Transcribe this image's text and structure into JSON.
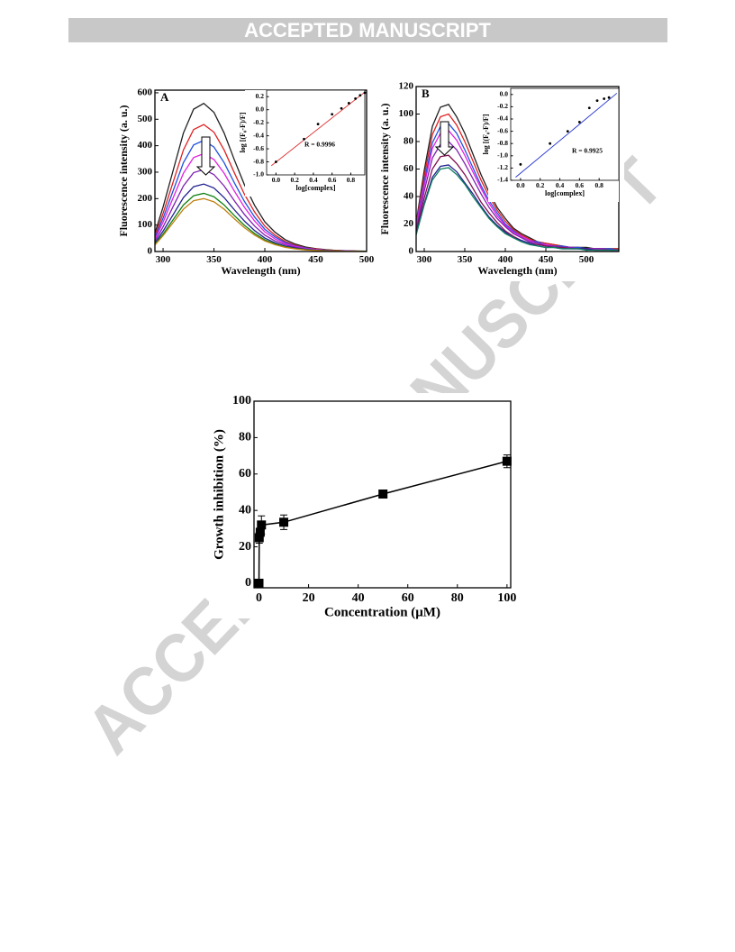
{
  "header": "ACCEPTED MANUSCRIPT",
  "watermark": "ACCEPTED MANUSCRIPT",
  "chart_data": [
    {
      "type": "line",
      "panel_label": "A",
      "xlabel": "Wavelength (nm)",
      "ylabel": "Fluorescence intensity (a. u.)",
      "xlim": [
        292,
        500
      ],
      "ylim": [
        0,
        610
      ],
      "xticks": [
        300,
        350,
        400,
        450,
        500
      ],
      "yticks": [
        0,
        100,
        200,
        300,
        400,
        500,
        600
      ],
      "x": [
        290,
        300,
        310,
        320,
        330,
        340,
        350,
        360,
        370,
        380,
        390,
        400,
        410,
        420,
        430,
        440,
        450,
        460,
        470,
        480,
        490,
        500
      ],
      "series": [
        {
          "color": "#202020",
          "values": [
            45,
            168,
            308,
            448,
            538,
            560,
            526,
            448,
            347,
            252,
            174,
            112,
            73,
            45,
            28,
            17,
            11,
            7,
            4,
            3,
            2,
            1
          ]
        },
        {
          "color": "#e02020",
          "values": [
            38,
            144,
            264,
            384,
            461,
            480,
            451,
            384,
            298,
            216,
            149,
            96,
            62,
            38,
            24,
            14,
            10,
            6,
            4,
            2,
            1,
            1
          ]
        },
        {
          "color": "#2050e0",
          "values": [
            34,
            126,
            231,
            336,
            403,
            420,
            395,
            336,
            260,
            189,
            130,
            84,
            55,
            34,
            21,
            13,
            8,
            5,
            3,
            2,
            1,
            1
          ]
        },
        {
          "color": "#e020e0",
          "values": [
            30,
            111,
            204,
            296,
            355,
            370,
            348,
            296,
            229,
            167,
            115,
            74,
            48,
            30,
            19,
            11,
            7,
            4,
            3,
            2,
            1,
            1
          ]
        },
        {
          "color": "#8020b0",
          "values": [
            25,
            93,
            171,
            248,
            298,
            310,
            291,
            248,
            192,
            140,
            96,
            62,
            40,
            25,
            16,
            9,
            6,
            4,
            2,
            2,
            1,
            1
          ]
        },
        {
          "color": "#202090",
          "values": [
            20,
            77,
            140,
            204,
            245,
            255,
            240,
            204,
            158,
            115,
            79,
            51,
            33,
            20,
            13,
            8,
            5,
            3,
            2,
            1,
            1,
            1
          ]
        },
        {
          "color": "#108010",
          "values": [
            18,
            66,
            121,
            176,
            211,
            220,
            207,
            176,
            136,
            99,
            68,
            44,
            29,
            18,
            11,
            7,
            4,
            3,
            2,
            1,
            1,
            0
          ]
        },
        {
          "color": "#c08010",
          "values": [
            16,
            60,
            110,
            160,
            192,
            200,
            188,
            160,
            124,
            90,
            62,
            40,
            26,
            16,
            10,
            6,
            4,
            2,
            2,
            1,
            1,
            0
          ]
        }
      ]
    },
    {
      "type": "scatter",
      "annotation": "R = 0.9996",
      "xlabel": "log[complex]",
      "ylabel": "log [(F₀-F)/F]",
      "xlim": [
        -0.1,
        0.95
      ],
      "ylim": [
        -1.0,
        0.3
      ],
      "xticks": [
        {
          "value": 0,
          "label": "0.0"
        },
        0.2,
        0.4,
        0.6,
        0.8
      ],
      "yticks": [
        {
          "value": -1,
          "label": "-1.0"
        },
        -0.8,
        -0.6,
        -0.4,
        -0.2,
        {
          "value": 0,
          "label": "0.0"
        },
        0.2
      ],
      "x": [
        0,
        0.3,
        0.45,
        0.6,
        0.7,
        0.78,
        0.85,
        0.9,
        0.95
      ],
      "values": [
        -0.8,
        -0.45,
        -0.22,
        -0.07,
        0.02,
        0.1,
        0.17,
        0.22,
        0.26
      ],
      "color": "#000000",
      "fit": {
        "color": "#e03030",
        "x": [
          -0.05,
          0.95
        ],
        "values": [
          -0.86,
          0.27
        ]
      }
    },
    {
      "type": "line",
      "panel_label": "B",
      "xlabel": "Wavelength (nm)",
      "ylabel": "Fluorescence intensity (a. u.)",
      "xlim": [
        290,
        540
      ],
      "ylim": [
        0,
        120
      ],
      "xticks": [
        300,
        350,
        400,
        450,
        500
      ],
      "yticks": [
        0,
        20,
        40,
        60,
        80,
        100,
        120
      ],
      "x": [
        290,
        300,
        310,
        320,
        330,
        340,
        350,
        360,
        370,
        380,
        390,
        400,
        410,
        420,
        430,
        440,
        450,
        460,
        470,
        480,
        490,
        500,
        510,
        520,
        530,
        540
      ],
      "series": [
        {
          "color": "#202020",
          "values": [
            21,
            59,
            91,
            105,
            107,
            98,
            86,
            71,
            56,
            43,
            32,
            24,
            17,
            13,
            10,
            7,
            6,
            5,
            4,
            3,
            3,
            3,
            2,
            2,
            2,
            2
          ]
        },
        {
          "color": "#e02020",
          "values": [
            20,
            55,
            85,
            98,
            100,
            92,
            80,
            66,
            52,
            40,
            30,
            22,
            16,
            12,
            9,
            7,
            6,
            5,
            4,
            3,
            3,
            2,
            2,
            2,
            2,
            2
          ]
        },
        {
          "color": "#2050e0",
          "values": [
            19,
            51,
            79,
            91,
            93,
            86,
            74,
            61,
            48,
            37,
            28,
            20,
            15,
            11,
            8,
            7,
            5,
            4,
            4,
            3,
            3,
            2,
            2,
            2,
            2,
            1
          ]
        },
        {
          "color": "#e020e0",
          "values": [
            18,
            48,
            75,
            86,
            88,
            81,
            70,
            58,
            46,
            35,
            26,
            19,
            14,
            11,
            8,
            6,
            5,
            4,
            3,
            3,
            2,
            2,
            2,
            2,
            1,
            1
          ]
        },
        {
          "color": "#8020b0",
          "values": [
            16,
            44,
            68,
            78,
            80,
            74,
            64,
            53,
            42,
            32,
            24,
            18,
            13,
            10,
            7,
            6,
            4,
            4,
            3,
            3,
            2,
            2,
            2,
            2,
            1,
            1
          ]
        },
        {
          "color": "#801050",
          "values": [
            14,
            39,
            60,
            69,
            70,
            64,
            56,
            46,
            36,
            28,
            21,
            15,
            11,
            8,
            6,
            5,
            4,
            3,
            3,
            2,
            2,
            2,
            1,
            1,
            1,
            1
          ]
        },
        {
          "color": "#202090",
          "values": [
            13,
            35,
            54,
            62,
            63,
            58,
            50,
            42,
            33,
            25,
            19,
            14,
            10,
            8,
            6,
            4,
            3,
            3,
            2,
            2,
            2,
            2,
            1,
            1,
            1,
            1
          ]
        },
        {
          "color": "#108060",
          "values": [
            12,
            34,
            52,
            60,
            61,
            56,
            49,
            40,
            32,
            24,
            18,
            13,
            10,
            7,
            5,
            4,
            3,
            3,
            2,
            2,
            2,
            1,
            1,
            1,
            1,
            1
          ]
        }
      ]
    },
    {
      "type": "scatter",
      "annotation": "R = 0.9925",
      "xlabel": "log[complex]",
      "ylabel": "log [(F₀-F)/F]",
      "xlim": [
        -0.1,
        1.0
      ],
      "ylim": [
        -1.4,
        0.1
      ],
      "xticks": [
        {
          "value": 0,
          "label": "0.0"
        },
        0.2,
        0.4,
        0.6,
        0.8
      ],
      "yticks": [
        -1.4,
        -1.2,
        {
          "value": -1,
          "label": "-1.0"
        },
        -0.8,
        -0.6,
        -0.4,
        -0.2,
        {
          "value": 0,
          "label": "0.0"
        }
      ],
      "x": [
        0,
        0.3,
        0.48,
        0.6,
        0.7,
        0.78,
        0.85,
        0.9
      ],
      "values": [
        -1.14,
        -0.8,
        -0.6,
        -0.45,
        -0.22,
        -0.1,
        -0.07,
        -0.05
      ],
      "color": "#000000",
      "fit": {
        "color": "#2030d0",
        "x": [
          -0.05,
          0.98
        ],
        "values": [
          -1.35,
          0.02
        ]
      }
    },
    {
      "type": "scatter",
      "xlabel": "Concentration (μM)",
      "ylabel": "Growth inhibition (%)",
      "xlim": [
        -2,
        101.5
      ],
      "ylim": [
        -2.5,
        100
      ],
      "xticks": [
        0,
        20,
        40,
        60,
        80,
        100
      ],
      "yticks": [
        0,
        20,
        40,
        60,
        80,
        100
      ],
      "x": [
        0,
        0.1,
        0.5,
        1,
        10,
        50,
        100
      ],
      "values": [
        0,
        25,
        28,
        32,
        33.5,
        49,
        67
      ],
      "errors": [
        1,
        3,
        2,
        5,
        4,
        1,
        3.5
      ],
      "color": "#000000",
      "connect": true,
      "marker": "square"
    }
  ]
}
